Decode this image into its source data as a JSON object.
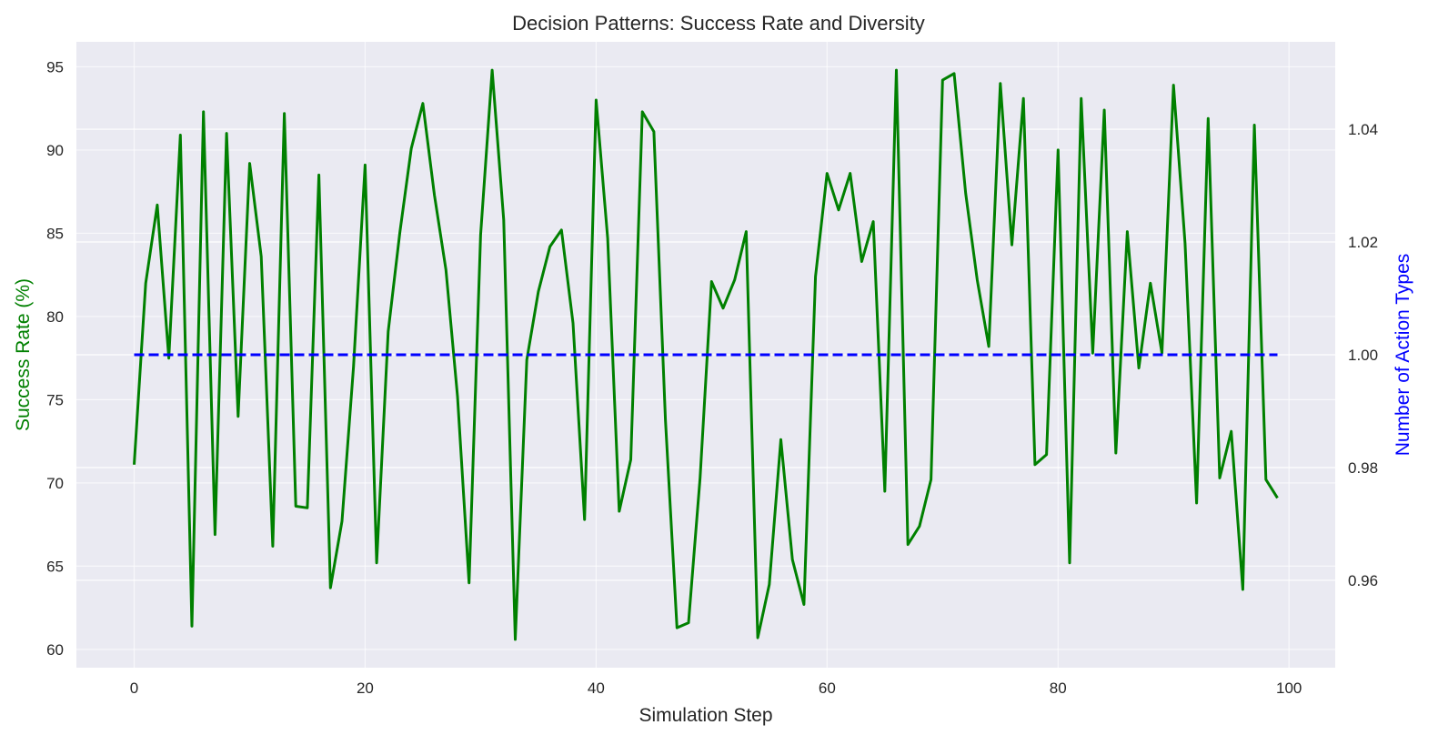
{
  "chart_data": {
    "type": "line",
    "title": "Decision Patterns: Success Rate and Diversity",
    "xlabel": "Simulation Step",
    "ylabel": "Success Rate (%)",
    "y2label": "Number of Action Types",
    "xlim": [
      -5,
      104
    ],
    "ylim": [
      58.9,
      96.5
    ],
    "y2lim": [
      0.9445,
      1.0555
    ],
    "xticks": [
      0,
      20,
      40,
      60,
      80,
      100
    ],
    "yticks": [
      60,
      65,
      70,
      75,
      80,
      85,
      90,
      95
    ],
    "y2ticks": [
      0.96,
      0.98,
      1.0,
      1.02,
      1.04
    ],
    "y2tick_labels": [
      "0.96",
      "0.98",
      "1.00",
      "1.02",
      "1.04"
    ],
    "grid": true,
    "colors": {
      "success": "#008000",
      "action_types": "#0000ff",
      "background": "#eaeaf2",
      "ylabel": "#008000",
      "y2label": "#0000ff"
    },
    "series": [
      {
        "axis": "left",
        "style": "solid",
        "x": [
          0,
          1,
          2,
          3,
          4,
          5,
          6,
          7,
          8,
          9,
          10,
          11,
          12,
          13,
          14,
          15,
          16,
          17,
          18,
          19,
          20,
          21,
          22,
          23,
          24,
          25,
          26,
          27,
          28,
          29,
          30,
          31,
          32,
          33,
          34,
          35,
          36,
          37,
          38,
          39,
          40,
          41,
          42,
          43,
          44,
          45,
          46,
          47,
          48,
          49,
          50,
          51,
          52,
          53,
          54,
          55,
          56,
          57,
          58,
          59,
          60,
          61,
          62,
          63,
          64,
          65,
          66,
          67,
          68,
          69,
          70,
          71,
          72,
          73,
          74,
          75,
          76,
          77,
          78,
          79,
          80,
          81,
          82,
          83,
          84,
          85,
          86,
          87,
          88,
          89,
          90,
          91,
          92,
          93,
          94,
          95,
          96,
          97,
          98,
          99
        ],
        "values": [
          71.1,
          82.0,
          86.7,
          77.5,
          90.9,
          61.4,
          92.3,
          66.9,
          91.0,
          74.0,
          89.2,
          83.6,
          66.2,
          92.2,
          68.6,
          68.5,
          88.5,
          63.7,
          67.7,
          77.0,
          89.1,
          65.2,
          79.1,
          85.0,
          90.1,
          92.8,
          87.3,
          82.8,
          75.2,
          64.0,
          84.9,
          94.8,
          85.8,
          60.6,
          77.4,
          81.5,
          84.2,
          85.2,
          79.6,
          67.8,
          93.0,
          84.7,
          68.3,
          71.4,
          92.3,
          91.1,
          73.8,
          61.3,
          61.6,
          70.3,
          82.1,
          80.5,
          82.2,
          85.1,
          60.7,
          63.9,
          72.6,
          65.4,
          62.7,
          82.4,
          88.6,
          86.4,
          88.6,
          83.3,
          85.7,
          69.5,
          94.8,
          66.3,
          67.4,
          70.2,
          94.2,
          94.6,
          87.4,
          82.2,
          78.2,
          94.0,
          84.3,
          93.1,
          71.1,
          71.7,
          90.0,
          65.2,
          93.1,
          77.8,
          92.4,
          71.8,
          85.1,
          76.9,
          82.0,
          77.8,
          93.9,
          84.4,
          68.8,
          91.9,
          70.3,
          73.1,
          63.6,
          91.5,
          70.2,
          69.1
        ]
      },
      {
        "axis": "right",
        "style": "dashed",
        "x": [
          0,
          99
        ],
        "values": [
          1.0,
          1.0
        ]
      }
    ]
  }
}
